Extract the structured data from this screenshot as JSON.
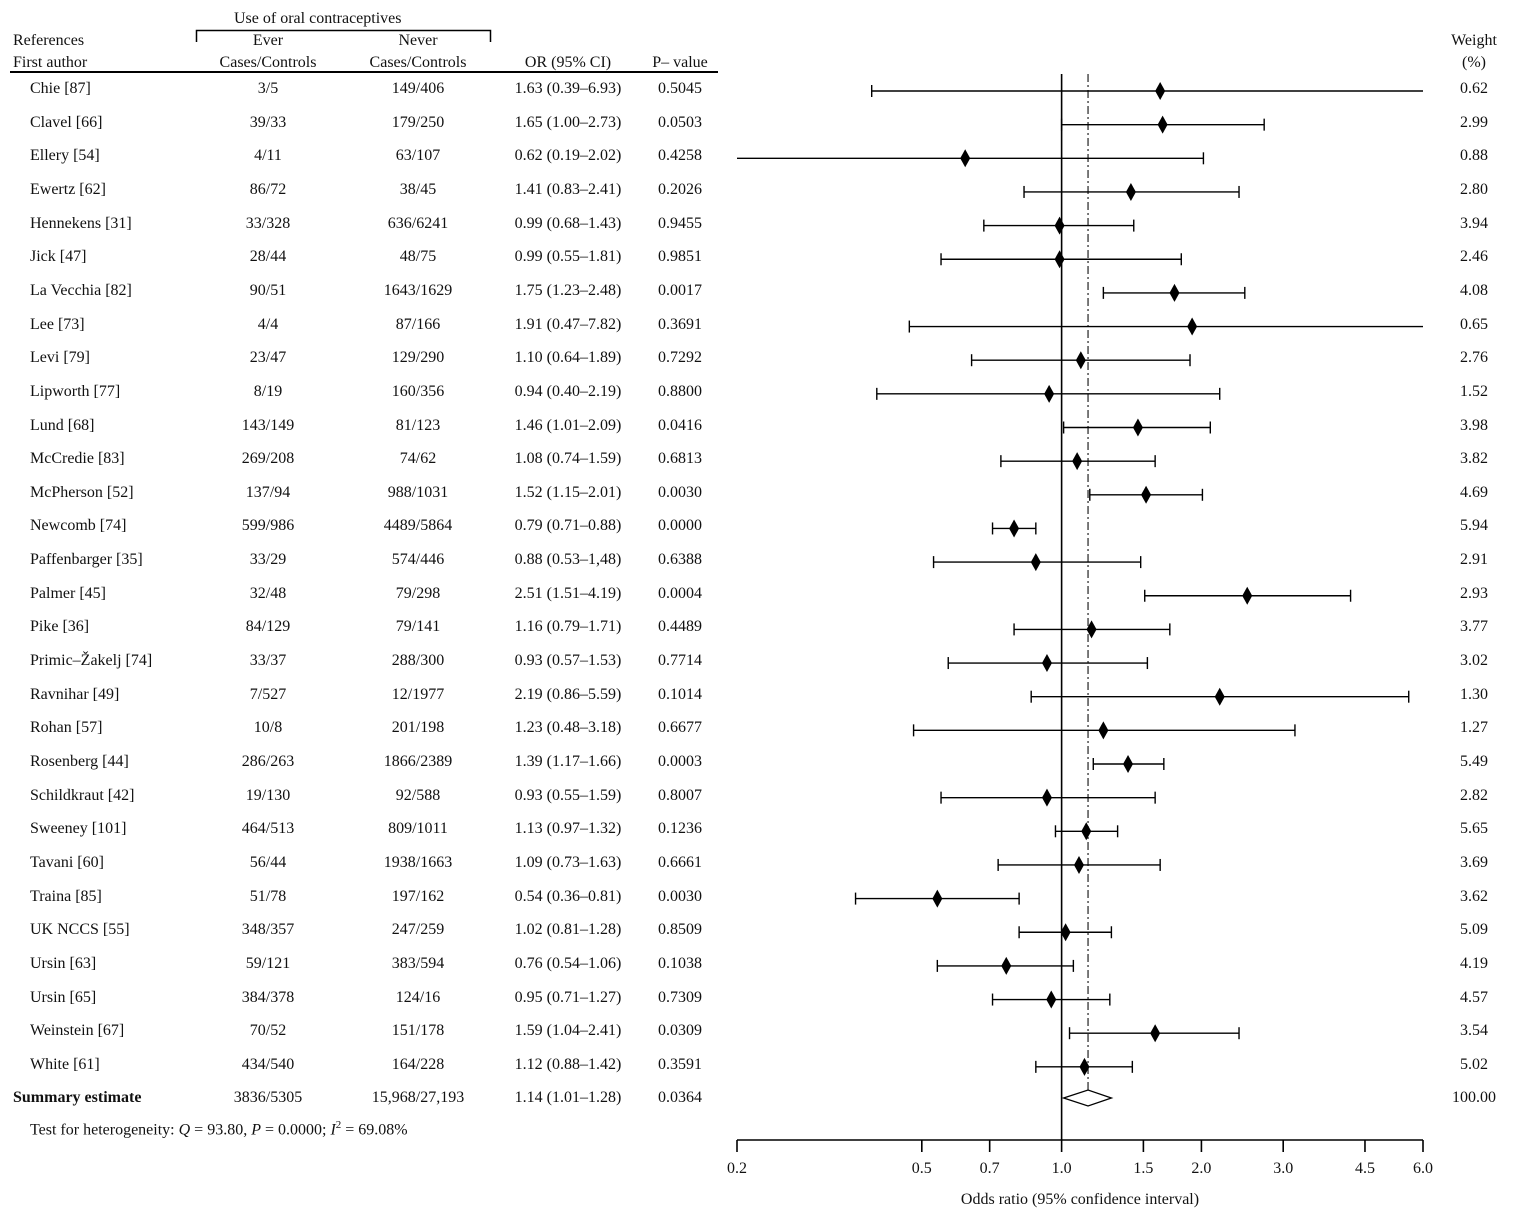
{
  "header": {
    "group_label": "Use of oral contraceptives",
    "ref_line1": "References",
    "ref_line2": "First author",
    "ever_line1": "Ever",
    "ever_line2": "Cases/Controls",
    "never_line1": "Never",
    "never_line2": "Cases/Controls",
    "or_label": "OR (95% CI)",
    "p_label": "P– value",
    "weight_line1": "Weight",
    "weight_line2": "(%)"
  },
  "rows": [
    {
      "ref": "Chie [87]",
      "ever": "3/5",
      "never": "149/406",
      "or_text": "1.63 (0.39–6.93)",
      "p": "0.5045",
      "weight": "0.62"
    },
    {
      "ref": "Clavel [66]",
      "ever": "39/33",
      "never": "179/250",
      "or_text": "1.65 (1.00–2.73)",
      "p": "0.0503",
      "weight": "2.99"
    },
    {
      "ref": "Ellery [54]",
      "ever": "4/11",
      "never": "63/107",
      "or_text": "0.62 (0.19–2.02)",
      "p": "0.4258",
      "weight": "0.88"
    },
    {
      "ref": "Ewertz [62]",
      "ever": "86/72",
      "never": "38/45",
      "or_text": "1.41 (0.83–2.41)",
      "p": "0.2026",
      "weight": "2.80"
    },
    {
      "ref": "Hennekens [31]",
      "ever": "33/328",
      "never": "636/6241",
      "or_text": "0.99 (0.68–1.43)",
      "p": "0.9455",
      "weight": "3.94"
    },
    {
      "ref": "Jick [47]",
      "ever": "28/44",
      "never": "48/75",
      "or_text": "0.99 (0.55–1.81)",
      "p": "0.9851",
      "weight": "2.46"
    },
    {
      "ref": "La Vecchia [82]",
      "ever": "90/51",
      "never": "1643/1629",
      "or_text": "1.75 (1.23–2.48)",
      "p": "0.0017",
      "weight": "4.08"
    },
    {
      "ref": "Lee [73]",
      "ever": "4/4",
      "never": "87/166",
      "or_text": "1.91 (0.47–7.82)",
      "p": "0.3691",
      "weight": "0.65"
    },
    {
      "ref": "Levi [79]",
      "ever": "23/47",
      "never": "129/290",
      "or_text": "1.10 (0.64–1.89)",
      "p": "0.7292",
      "weight": "2.76"
    },
    {
      "ref": "Lipworth [77]",
      "ever": "8/19",
      "never": "160/356",
      "or_text": "0.94 (0.40–2.19)",
      "p": "0.8800",
      "weight": "1.52"
    },
    {
      "ref": "Lund [68]",
      "ever": "143/149",
      "never": "81/123",
      "or_text": "1.46 (1.01–2.09)",
      "p": "0.0416",
      "weight": "3.98"
    },
    {
      "ref": "McCredie [83]",
      "ever": "269/208",
      "never": "74/62",
      "or_text": "1.08 (0.74–1.59)",
      "p": "0.6813",
      "weight": "3.82"
    },
    {
      "ref": "McPherson [52]",
      "ever": "137/94",
      "never": "988/1031",
      "or_text": "1.52 (1.15–2.01)",
      "p": "0.0030",
      "weight": "4.69"
    },
    {
      "ref": "Newcomb [74]",
      "ever": "599/986",
      "never": "4489/5864",
      "or_text": "0.79 (0.71–0.88)",
      "p": "0.0000",
      "weight": "5.94"
    },
    {
      "ref": "Paffenbarger [35]",
      "ever": "33/29",
      "never": "574/446",
      "or_text": "0.88 (0.53–1,48)",
      "p": "0.6388",
      "weight": "2.91"
    },
    {
      "ref": "Palmer [45]",
      "ever": "32/48",
      "never": "79/298",
      "or_text": "2.51 (1.51–4.19)",
      "p": "0.0004",
      "weight": "2.93"
    },
    {
      "ref": "Pike [36]",
      "ever": "84/129",
      "never": "79/141",
      "or_text": "1.16 (0.79–1.71)",
      "p": "0.4489",
      "weight": "3.77"
    },
    {
      "ref": "Primic–Žakelj [74]",
      "ever": "33/37",
      "never": "288/300",
      "or_text": "0.93 (0.57–1.53)",
      "p": "0.7714",
      "weight": "3.02"
    },
    {
      "ref": "Ravnihar [49]",
      "ever": "7/527",
      "never": "12/1977",
      "or_text": "2.19 (0.86–5.59)",
      "p": "0.1014",
      "weight": "1.30"
    },
    {
      "ref": "Rohan [57]",
      "ever": "10/8",
      "never": "201/198",
      "or_text": "1.23 (0.48–3.18)",
      "p": "0.6677",
      "weight": "1.27"
    },
    {
      "ref": "Rosenberg [44]",
      "ever": "286/263",
      "never": "1866/2389",
      "or_text": "1.39 (1.17–1.66)",
      "p": "0.0003",
      "weight": "5.49"
    },
    {
      "ref": "Schildkraut [42]",
      "ever": "19/130",
      "never": "92/588",
      "or_text": "0.93 (0.55–1.59)",
      "p": "0.8007",
      "weight": "2.82"
    },
    {
      "ref": "Sweeney [101]",
      "ever": "464/513",
      "never": "809/1011",
      "or_text": "1.13 (0.97–1.32)",
      "p": "0.1236",
      "weight": "5.65"
    },
    {
      "ref": "Tavani [60]",
      "ever": "56/44",
      "never": "1938/1663",
      "or_text": "1.09 (0.73–1.63)",
      "p": "0.6661",
      "weight": "3.69"
    },
    {
      "ref": "Traina [85]",
      "ever": "51/78",
      "never": "197/162",
      "or_text": "0.54 (0.36–0.81)",
      "p": "0.0030",
      "weight": "3.62"
    },
    {
      "ref": "UK NCCS [55]",
      "ever": "348/357",
      "never": "247/259",
      "or_text": "1.02 (0.81–1.28)",
      "p": "0.8509",
      "weight": "5.09"
    },
    {
      "ref": "Ursin [63]",
      "ever": "59/121",
      "never": "383/594",
      "or_text": "0.76 (0.54–1.06)",
      "p": "0.1038",
      "weight": "4.19"
    },
    {
      "ref": "Ursin [65]",
      "ever": "384/378",
      "never": "124/16",
      "or_text": "0.95 (0.71–1.27)",
      "p": "0.7309",
      "weight": "4.57"
    },
    {
      "ref": "Weinstein [67]",
      "ever": "70/52",
      "never": "151/178",
      "or_text": "1.59 (1.04–2.41)",
      "p": "0.0309",
      "weight": "3.54"
    },
    {
      "ref": "White [61]",
      "ever": "434/540",
      "never": "164/228",
      "or_text": "1.12 (0.88–1.42)",
      "p": "0.3591",
      "weight": "5.02"
    }
  ],
  "summary": {
    "ref": "Summary estimate",
    "ever": "3836/5305",
    "never": "15,968/27,193",
    "or_text": "1.14 (1.01–1.28)",
    "p": "0.0364",
    "weight": "100.00"
  },
  "heterogeneity": {
    "prefix": "Test for heterogeneity: ",
    "q_symbol": "Q",
    "q_value": " = 93.80, ",
    "p_symbol": "P",
    "p_value": " = 0.0000; ",
    "i_symbol": "I",
    "i_sup": "2",
    "i_value": " = 69.08%"
  },
  "chart_data": {
    "type": "forest",
    "title": "",
    "xlabel": "Odds ratio (95% confidence interval)",
    "x_scale": "log",
    "xlim": [
      0.2,
      6.0
    ],
    "ticks": [
      0.2,
      0.5,
      0.7,
      1.0,
      1.5,
      2.0,
      3.0,
      4.5,
      6.0
    ],
    "tick_labels": [
      "0.2",
      "0.5",
      "0.7",
      "1.0",
      "1.5",
      "2.0",
      "3.0",
      "4.5",
      "6.0"
    ],
    "reference_line": 1.0,
    "summary_line": 1.14,
    "studies": [
      {
        "name": "Chie [87]",
        "or": 1.63,
        "lo": 0.39,
        "hi": 6.93
      },
      {
        "name": "Clavel [66]",
        "or": 1.65,
        "lo": 1.0,
        "hi": 2.73
      },
      {
        "name": "Ellery [54]",
        "or": 0.62,
        "lo": 0.19,
        "hi": 2.02
      },
      {
        "name": "Ewertz [62]",
        "or": 1.41,
        "lo": 0.83,
        "hi": 2.41
      },
      {
        "name": "Hennekens [31]",
        "or": 0.99,
        "lo": 0.68,
        "hi": 1.43
      },
      {
        "name": "Jick [47]",
        "or": 0.99,
        "lo": 0.55,
        "hi": 1.81
      },
      {
        "name": "La Vecchia [82]",
        "or": 1.75,
        "lo": 1.23,
        "hi": 2.48
      },
      {
        "name": "Lee [73]",
        "or": 1.91,
        "lo": 0.47,
        "hi": 7.82
      },
      {
        "name": "Levi [79]",
        "or": 1.1,
        "lo": 0.64,
        "hi": 1.89
      },
      {
        "name": "Lipworth [77]",
        "or": 0.94,
        "lo": 0.4,
        "hi": 2.19
      },
      {
        "name": "Lund [68]",
        "or": 1.46,
        "lo": 1.01,
        "hi": 2.09
      },
      {
        "name": "McCredie [83]",
        "or": 1.08,
        "lo": 0.74,
        "hi": 1.59
      },
      {
        "name": "McPherson [52]",
        "or": 1.52,
        "lo": 1.15,
        "hi": 2.01
      },
      {
        "name": "Newcomb [74]",
        "or": 0.79,
        "lo": 0.71,
        "hi": 0.88
      },
      {
        "name": "Paffenbarger [35]",
        "or": 0.88,
        "lo": 0.53,
        "hi": 1.48
      },
      {
        "name": "Palmer [45]",
        "or": 2.51,
        "lo": 1.51,
        "hi": 4.19
      },
      {
        "name": "Pike [36]",
        "or": 1.16,
        "lo": 0.79,
        "hi": 1.71
      },
      {
        "name": "Primic–Žakelj [74]",
        "or": 0.93,
        "lo": 0.57,
        "hi": 1.53
      },
      {
        "name": "Ravnihar [49]",
        "or": 2.19,
        "lo": 0.86,
        "hi": 5.59
      },
      {
        "name": "Rohan [57]",
        "or": 1.23,
        "lo": 0.48,
        "hi": 3.18
      },
      {
        "name": "Rosenberg [44]",
        "or": 1.39,
        "lo": 1.17,
        "hi": 1.66
      },
      {
        "name": "Schildkraut [42]",
        "or": 0.93,
        "lo": 0.55,
        "hi": 1.59
      },
      {
        "name": "Sweeney [101]",
        "or": 1.13,
        "lo": 0.97,
        "hi": 1.32
      },
      {
        "name": "Tavani [60]",
        "or": 1.09,
        "lo": 0.73,
        "hi": 1.63
      },
      {
        "name": "Traina [85]",
        "or": 0.54,
        "lo": 0.36,
        "hi": 0.81
      },
      {
        "name": "UK NCCS [55]",
        "or": 1.02,
        "lo": 0.81,
        "hi": 1.28
      },
      {
        "name": "Ursin [63]",
        "or": 0.76,
        "lo": 0.54,
        "hi": 1.06
      },
      {
        "name": "Ursin [65]",
        "or": 0.95,
        "lo": 0.71,
        "hi": 1.27
      },
      {
        "name": "Weinstein [67]",
        "or": 1.59,
        "lo": 1.04,
        "hi": 2.41
      },
      {
        "name": "White [61]",
        "or": 1.12,
        "lo": 0.88,
        "hi": 1.42
      }
    ],
    "summary": {
      "name": "Summary estimate",
      "or": 1.14,
      "lo": 1.01,
      "hi": 1.28
    }
  }
}
